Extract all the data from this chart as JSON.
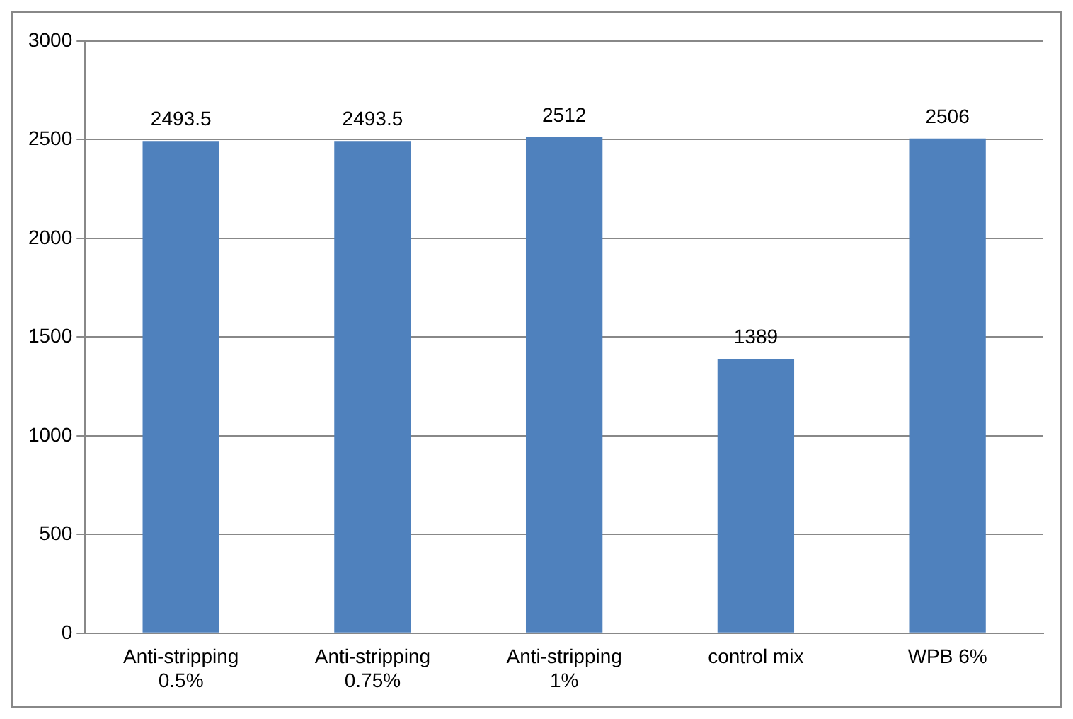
{
  "chart_data": {
    "type": "bar",
    "categories": [
      "Anti-stripping 0.5%",
      "Anti-stripping 0.75%",
      "Anti-stripping 1%",
      "control mix",
      "WPB 6%"
    ],
    "values": [
      2493.5,
      2493.5,
      2512,
      1389,
      2506
    ],
    "color": "#4f81bd",
    "ylim": [
      0,
      3000
    ],
    "yticks": [
      0,
      500,
      1000,
      1500,
      2000,
      2500,
      3000
    ],
    "grid": "y",
    "data_labels": true,
    "legend": false
  }
}
